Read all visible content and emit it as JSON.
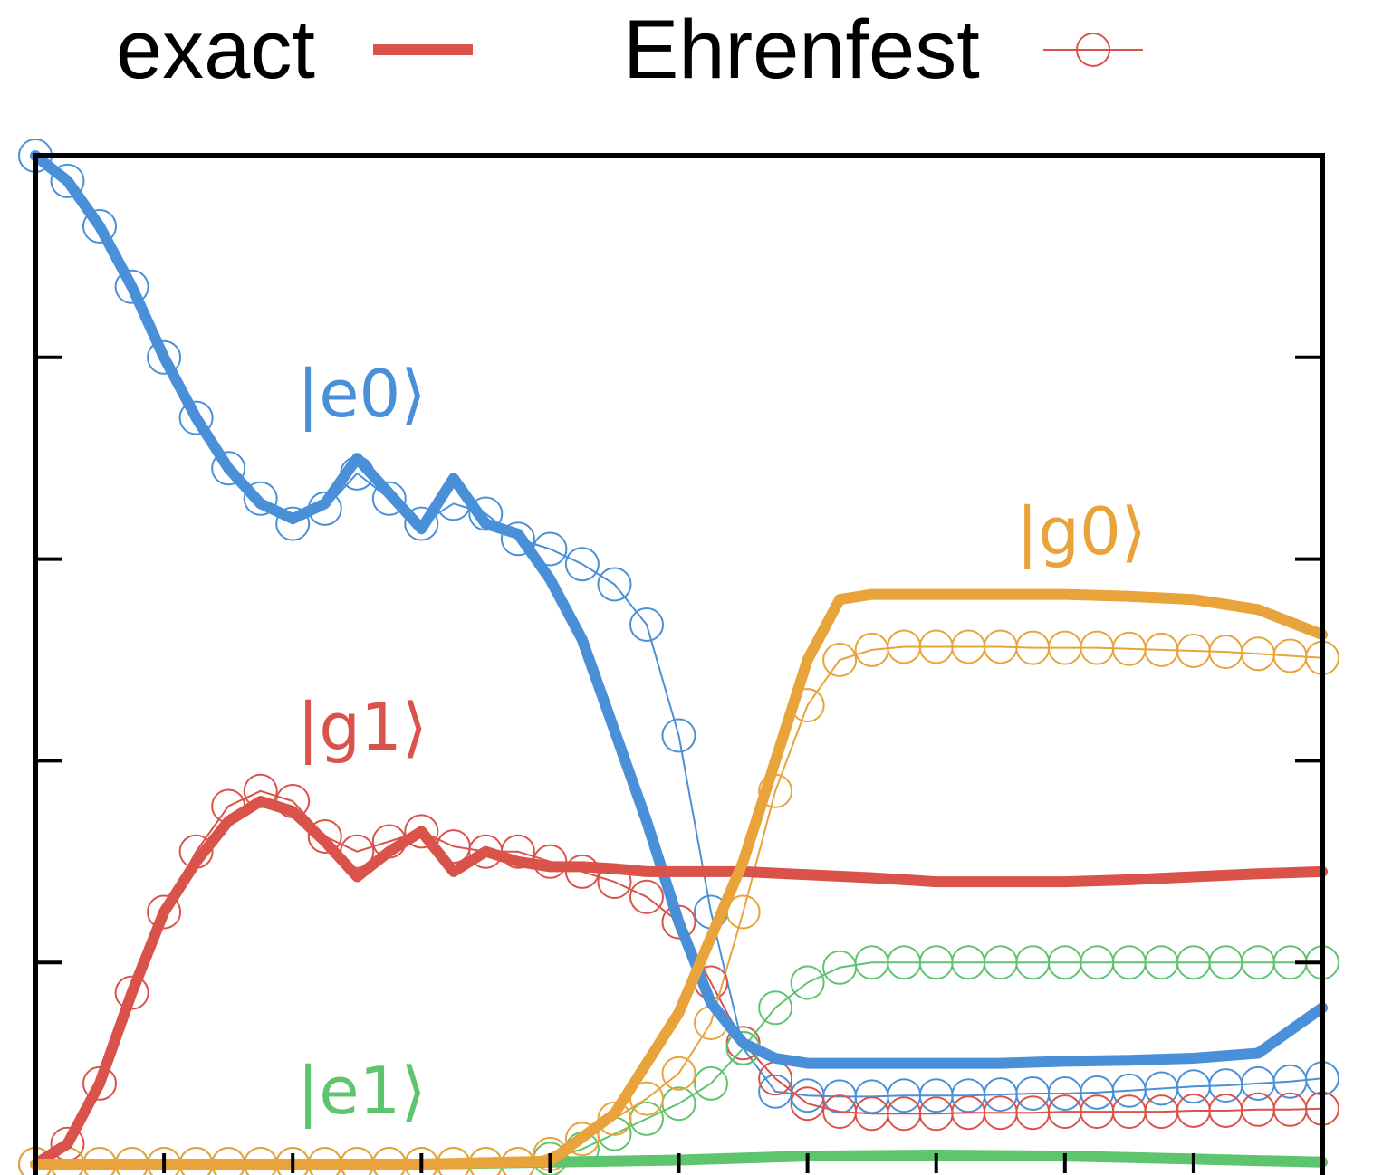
{
  "chart_data": {
    "type": "line",
    "title": "",
    "xlabel": "",
    "ylabel": "",
    "xlim": [
      0,
      1
    ],
    "ylim": [
      0,
      1
    ],
    "x_ticks": [
      0.1,
      0.2,
      0.3,
      0.4,
      0.5,
      0.6,
      0.7,
      0.8,
      0.9
    ],
    "y_ticks": [
      0.2,
      0.4,
      0.6,
      0.8
    ],
    "grid": false,
    "legend": {
      "placement": "top",
      "entries": [
        {
          "label": "exact",
          "style": "thick solid line"
        },
        {
          "label": "Ehrenfest",
          "style": "thin line with open circles"
        }
      ]
    },
    "states": [
      {
        "label": "|e0⟩",
        "color": "#4a90d9"
      },
      {
        "label": "|g1⟩",
        "color": "#d9534a"
      },
      {
        "label": "|e1⟩",
        "color": "#5ec46e"
      },
      {
        "label": "|g0⟩",
        "color": "#e8a33a"
      }
    ],
    "series": [
      {
        "state": "|e0⟩",
        "method": "exact",
        "x": [
          0,
          0.025,
          0.05,
          0.075,
          0.1,
          0.125,
          0.15,
          0.175,
          0.2,
          0.225,
          0.25,
          0.275,
          0.3,
          0.325,
          0.35,
          0.375,
          0.4,
          0.425,
          0.45,
          0.475,
          0.5,
          0.525,
          0.55,
          0.575,
          0.6,
          0.625,
          0.65,
          0.675,
          0.7,
          0.75,
          0.8,
          0.85,
          0.9,
          0.95,
          1.0
        ],
        "y": [
          1.0,
          0.975,
          0.93,
          0.87,
          0.8,
          0.74,
          0.69,
          0.655,
          0.64,
          0.655,
          0.7,
          0.665,
          0.63,
          0.68,
          0.635,
          0.625,
          0.58,
          0.52,
          0.43,
          0.34,
          0.24,
          0.16,
          0.12,
          0.105,
          0.1,
          0.1,
          0.1,
          0.1,
          0.1,
          0.1,
          0.102,
          0.103,
          0.105,
          0.11,
          0.155
        ]
      },
      {
        "state": "|g1⟩",
        "method": "exact",
        "x": [
          0,
          0.025,
          0.05,
          0.075,
          0.1,
          0.125,
          0.15,
          0.175,
          0.2,
          0.225,
          0.25,
          0.275,
          0.3,
          0.325,
          0.35,
          0.375,
          0.4,
          0.425,
          0.45,
          0.475,
          0.5,
          0.55,
          0.6,
          0.65,
          0.7,
          0.75,
          0.8,
          0.85,
          0.9,
          0.95,
          1.0
        ],
        "y": [
          0.0,
          0.02,
          0.08,
          0.17,
          0.25,
          0.3,
          0.34,
          0.36,
          0.35,
          0.32,
          0.285,
          0.31,
          0.33,
          0.29,
          0.31,
          0.3,
          0.295,
          0.295,
          0.293,
          0.29,
          0.29,
          0.29,
          0.287,
          0.284,
          0.28,
          0.28,
          0.28,
          0.282,
          0.285,
          0.288,
          0.29
        ]
      },
      {
        "state": "|e1⟩",
        "method": "exact",
        "x": [
          0,
          0.1,
          0.2,
          0.3,
          0.4,
          0.5,
          0.6,
          0.7,
          0.8,
          0.9,
          1.0
        ],
        "y": [
          0.0,
          0.0,
          0.0,
          0.0,
          0.002,
          0.004,
          0.008,
          0.009,
          0.008,
          0.005,
          0.002
        ]
      },
      {
        "state": "|g0⟩",
        "method": "exact",
        "x": [
          0,
          0.1,
          0.2,
          0.3,
          0.4,
          0.45,
          0.5,
          0.55,
          0.6,
          0.625,
          0.65,
          0.7,
          0.75,
          0.8,
          0.85,
          0.9,
          0.95,
          1.0
        ],
        "y": [
          0.0,
          0.0,
          0.0,
          0.0,
          0.003,
          0.05,
          0.15,
          0.3,
          0.5,
          0.56,
          0.565,
          0.565,
          0.565,
          0.565,
          0.563,
          0.56,
          0.55,
          0.525
        ]
      },
      {
        "state": "|e0⟩",
        "method": "Ehrenfest",
        "x": [
          0,
          0.025,
          0.05,
          0.075,
          0.1,
          0.125,
          0.15,
          0.175,
          0.2,
          0.225,
          0.25,
          0.275,
          0.3,
          0.325,
          0.35,
          0.375,
          0.4,
          0.425,
          0.45,
          0.475,
          0.5,
          0.525,
          0.55,
          0.575,
          0.6,
          0.625,
          0.65,
          0.675,
          0.7,
          0.725,
          0.75,
          0.775,
          0.8,
          0.825,
          0.85,
          0.875,
          0.9,
          0.925,
          0.95,
          0.975,
          1.0
        ],
        "y": [
          1.0,
          0.975,
          0.93,
          0.87,
          0.8,
          0.74,
          0.69,
          0.66,
          0.635,
          0.65,
          0.685,
          0.66,
          0.635,
          0.655,
          0.645,
          0.62,
          0.61,
          0.595,
          0.575,
          0.535,
          0.425,
          0.25,
          0.115,
          0.072,
          0.068,
          0.067,
          0.067,
          0.068,
          0.068,
          0.068,
          0.069,
          0.07,
          0.07,
          0.071,
          0.073,
          0.075,
          0.077,
          0.078,
          0.08,
          0.082,
          0.085
        ]
      },
      {
        "state": "|g1⟩",
        "method": "Ehrenfest",
        "x": [
          0,
          0.025,
          0.05,
          0.075,
          0.1,
          0.125,
          0.15,
          0.175,
          0.2,
          0.225,
          0.25,
          0.275,
          0.3,
          0.325,
          0.35,
          0.375,
          0.4,
          0.425,
          0.45,
          0.475,
          0.5,
          0.525,
          0.55,
          0.575,
          0.6,
          0.625,
          0.65,
          0.675,
          0.7,
          0.725,
          0.75,
          0.775,
          0.8,
          0.825,
          0.85,
          0.875,
          0.9,
          0.925,
          0.95,
          0.975,
          1.0
        ],
        "y": [
          0.0,
          0.02,
          0.08,
          0.17,
          0.25,
          0.31,
          0.355,
          0.37,
          0.36,
          0.325,
          0.31,
          0.32,
          0.33,
          0.315,
          0.31,
          0.31,
          0.3,
          0.29,
          0.28,
          0.265,
          0.24,
          0.18,
          0.12,
          0.085,
          0.06,
          0.052,
          0.05,
          0.05,
          0.05,
          0.051,
          0.051,
          0.051,
          0.052,
          0.052,
          0.052,
          0.052,
          0.053,
          0.053,
          0.054,
          0.054,
          0.055
        ]
      },
      {
        "state": "|e1⟩",
        "method": "Ehrenfest",
        "x": [
          0,
          0.025,
          0.05,
          0.075,
          0.1,
          0.125,
          0.15,
          0.175,
          0.2,
          0.225,
          0.25,
          0.275,
          0.3,
          0.325,
          0.35,
          0.375,
          0.4,
          0.425,
          0.45,
          0.475,
          0.5,
          0.525,
          0.55,
          0.575,
          0.6,
          0.625,
          0.65,
          0.675,
          0.7,
          0.725,
          0.75,
          0.775,
          0.8,
          0.825,
          0.85,
          0.875,
          0.9,
          0.925,
          0.95,
          0.975,
          1.0
        ],
        "y": [
          0.0,
          0.0,
          0.0,
          0.0,
          0.0,
          0.0,
          0.0,
          0.0,
          0.0,
          0.0,
          0.0,
          0.0,
          0.0,
          0.0,
          0.0,
          0.0,
          0.005,
          0.015,
          0.03,
          0.045,
          0.06,
          0.08,
          0.115,
          0.155,
          0.18,
          0.195,
          0.2,
          0.2,
          0.2,
          0.2,
          0.2,
          0.2,
          0.2,
          0.2,
          0.2,
          0.2,
          0.2,
          0.2,
          0.2,
          0.2,
          0.2
        ]
      },
      {
        "state": "|g0⟩",
        "method": "Ehrenfest",
        "x": [
          0,
          0.025,
          0.05,
          0.075,
          0.1,
          0.125,
          0.15,
          0.175,
          0.2,
          0.225,
          0.25,
          0.275,
          0.3,
          0.325,
          0.35,
          0.375,
          0.4,
          0.425,
          0.45,
          0.475,
          0.5,
          0.525,
          0.55,
          0.575,
          0.6,
          0.625,
          0.65,
          0.675,
          0.7,
          0.725,
          0.75,
          0.775,
          0.8,
          0.825,
          0.85,
          0.875,
          0.9,
          0.925,
          0.95,
          0.975,
          1.0
        ],
        "y": [
          0.0,
          0.0,
          0.0,
          0.0,
          0.0,
          0.0,
          0.0,
          0.0,
          0.0,
          0.0,
          0.0,
          0.0,
          0.0,
          0.0,
          0.0,
          0.0,
          0.01,
          0.025,
          0.045,
          0.065,
          0.09,
          0.14,
          0.25,
          0.37,
          0.455,
          0.5,
          0.51,
          0.513,
          0.513,
          0.513,
          0.513,
          0.512,
          0.512,
          0.512,
          0.511,
          0.51,
          0.509,
          0.508,
          0.506,
          0.504,
          0.502
        ]
      }
    ]
  }
}
